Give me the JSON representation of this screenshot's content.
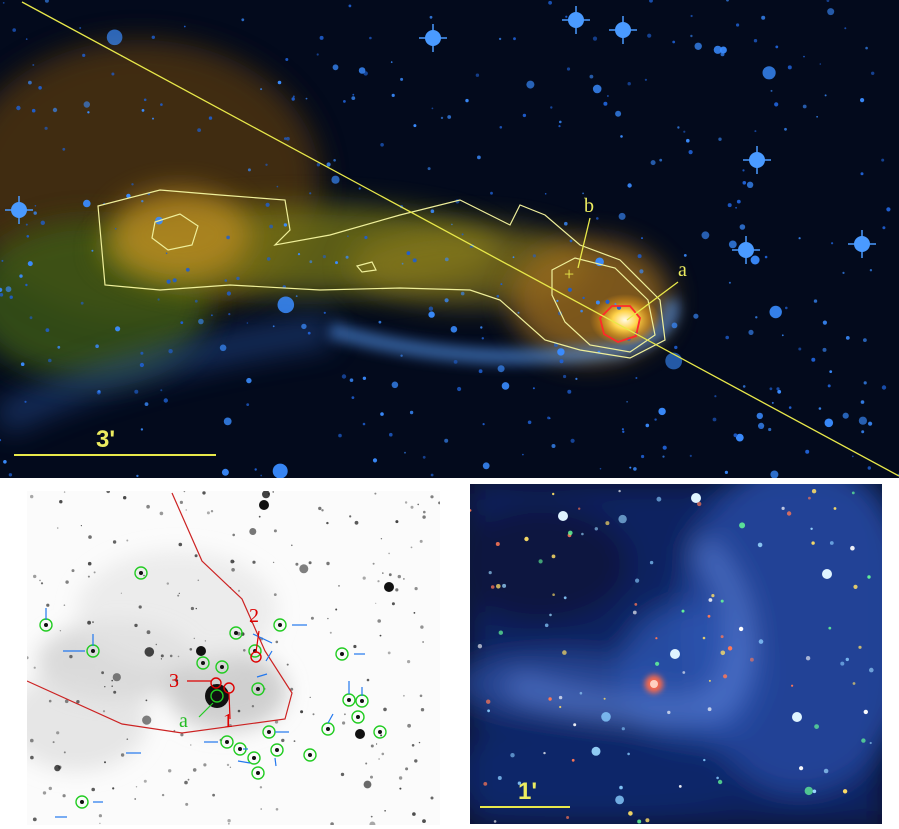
{
  "top_panel": {
    "scale_label": "3'",
    "labels": {
      "a": "a",
      "b": "b"
    },
    "colors": {
      "contour": "#efef9a",
      "inner_contour": "#ff2a2a",
      "line": "#e8e84a",
      "stars": "#3a8cff",
      "nebula": "#b9b12a"
    }
  },
  "bottom_left_panel": {
    "labels": {
      "n1": "1",
      "n2": "2",
      "n3": "3",
      "a": "a"
    },
    "colors": {
      "circles": "#22cc22",
      "arrows": "#2277ee",
      "outline": "#cc2222",
      "numbers": "#dd0000"
    }
  },
  "bottom_right_panel": {
    "scale_label": "1'",
    "colors": {
      "scale": "#e8e84a",
      "bright_source": "#ff5533",
      "nebula": "#3f6fd8"
    }
  }
}
